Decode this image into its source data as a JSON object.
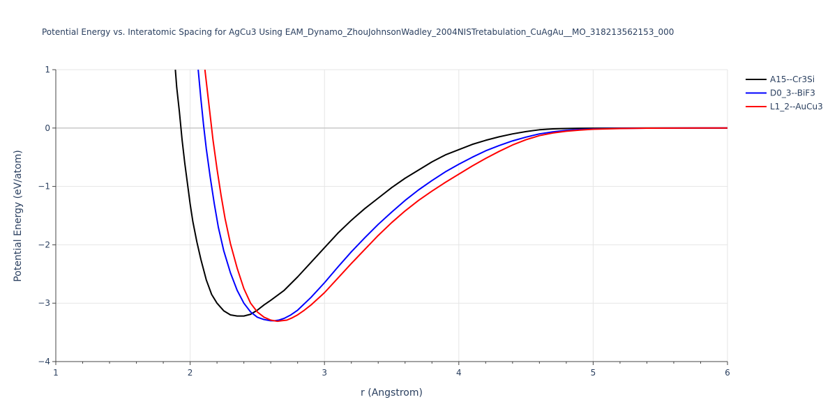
{
  "chart_data": {
    "type": "line",
    "title": "Potential Energy vs. Interatomic Spacing for AgCu3 Using EAM_Dynamo_ZhouJohnsonWadley_2004NISTretabulation_CuAgAu__MO_318213562153_000",
    "xlabel": "r (Angstrom)",
    "ylabel": "Potential Energy (eV/atom)",
    "xlim": [
      1,
      6
    ],
    "ylim": [
      -4,
      1
    ],
    "xticks": [
      1,
      2,
      3,
      4,
      5,
      6
    ],
    "yticks": [
      1,
      0,
      -1,
      -2,
      -3,
      -4
    ],
    "ytick_labels": [
      "1",
      "0",
      "−1",
      "−2",
      "−3",
      "−4"
    ],
    "grid": true,
    "legend_position": "top-right",
    "series": [
      {
        "name": "A15--Cr3Si",
        "color": "#000000",
        "x": [
          1.89,
          1.9,
          1.92,
          1.94,
          1.96,
          1.98,
          2.0,
          2.02,
          2.05,
          2.08,
          2.12,
          2.16,
          2.2,
          2.25,
          2.3,
          2.35,
          2.4,
          2.45,
          2.5,
          2.55,
          2.6,
          2.7,
          2.8,
          2.9,
          3.0,
          3.1,
          3.2,
          3.3,
          3.4,
          3.5,
          3.6,
          3.7,
          3.8,
          3.9,
          4.0,
          4.1,
          4.2,
          4.3,
          4.4,
          4.5,
          4.6,
          4.7,
          4.8,
          4.9,
          5.0,
          5.2,
          5.4,
          5.6,
          5.8,
          6.0
        ],
        "y": [
          1.0,
          0.7,
          0.28,
          -0.2,
          -0.6,
          -0.95,
          -1.3,
          -1.6,
          -1.95,
          -2.25,
          -2.6,
          -2.85,
          -3.0,
          -3.13,
          -3.2,
          -3.22,
          -3.22,
          -3.19,
          -3.12,
          -3.03,
          -2.95,
          -2.78,
          -2.55,
          -2.3,
          -2.05,
          -1.8,
          -1.58,
          -1.38,
          -1.2,
          -1.02,
          -0.86,
          -0.72,
          -0.58,
          -0.46,
          -0.37,
          -0.28,
          -0.21,
          -0.15,
          -0.1,
          -0.06,
          -0.03,
          -0.015,
          -0.008,
          -0.004,
          -0.002,
          -0.001,
          0.0,
          0.0,
          0.0,
          0.0
        ]
      },
      {
        "name": "D0_3--BiF3",
        "color": "#0000ff",
        "x": [
          2.06,
          2.08,
          2.1,
          2.12,
          2.15,
          2.18,
          2.21,
          2.25,
          2.3,
          2.35,
          2.4,
          2.45,
          2.5,
          2.55,
          2.6,
          2.63,
          2.66,
          2.7,
          2.75,
          2.8,
          2.9,
          3.0,
          3.1,
          3.2,
          3.3,
          3.4,
          3.5,
          3.6,
          3.7,
          3.8,
          3.9,
          4.0,
          4.1,
          4.2,
          4.3,
          4.4,
          4.5,
          4.6,
          4.7,
          4.8,
          4.9,
          5.0,
          5.2,
          5.4,
          5.6,
          5.8,
          6.0
        ],
        "y": [
          1.0,
          0.5,
          0.05,
          -0.35,
          -0.85,
          -1.3,
          -1.7,
          -2.1,
          -2.48,
          -2.78,
          -3.0,
          -3.15,
          -3.24,
          -3.28,
          -3.3,
          -3.3,
          -3.29,
          -3.26,
          -3.2,
          -3.12,
          -2.9,
          -2.65,
          -2.38,
          -2.12,
          -1.88,
          -1.65,
          -1.44,
          -1.24,
          -1.06,
          -0.9,
          -0.75,
          -0.62,
          -0.5,
          -0.39,
          -0.3,
          -0.22,
          -0.155,
          -0.1,
          -0.065,
          -0.04,
          -0.025,
          -0.015,
          -0.006,
          -0.002,
          -0.001,
          0.0,
          0.0
        ]
      },
      {
        "name": "L1_2--AuCu3",
        "color": "#ff0000",
        "x": [
          2.11,
          2.13,
          2.15,
          2.17,
          2.2,
          2.23,
          2.26,
          2.3,
          2.35,
          2.4,
          2.45,
          2.5,
          2.55,
          2.6,
          2.65,
          2.68,
          2.72,
          2.76,
          2.8,
          2.85,
          2.9,
          3.0,
          3.1,
          3.2,
          3.3,
          3.4,
          3.5,
          3.6,
          3.7,
          3.8,
          3.9,
          4.0,
          4.1,
          4.2,
          4.3,
          4.4,
          4.5,
          4.6,
          4.7,
          4.8,
          4.9,
          5.0,
          5.2,
          5.4,
          5.6,
          5.8,
          6.0
        ],
        "y": [
          1.0,
          0.6,
          0.2,
          -0.2,
          -0.7,
          -1.15,
          -1.55,
          -1.98,
          -2.4,
          -2.75,
          -3.0,
          -3.15,
          -3.24,
          -3.29,
          -3.31,
          -3.3,
          -3.29,
          -3.25,
          -3.2,
          -3.12,
          -3.03,
          -2.82,
          -2.57,
          -2.32,
          -2.08,
          -1.84,
          -1.62,
          -1.42,
          -1.24,
          -1.08,
          -0.93,
          -0.79,
          -0.65,
          -0.52,
          -0.4,
          -0.29,
          -0.2,
          -0.13,
          -0.085,
          -0.055,
          -0.035,
          -0.02,
          -0.008,
          -0.003,
          -0.001,
          0.0,
          0.0
        ]
      }
    ]
  }
}
